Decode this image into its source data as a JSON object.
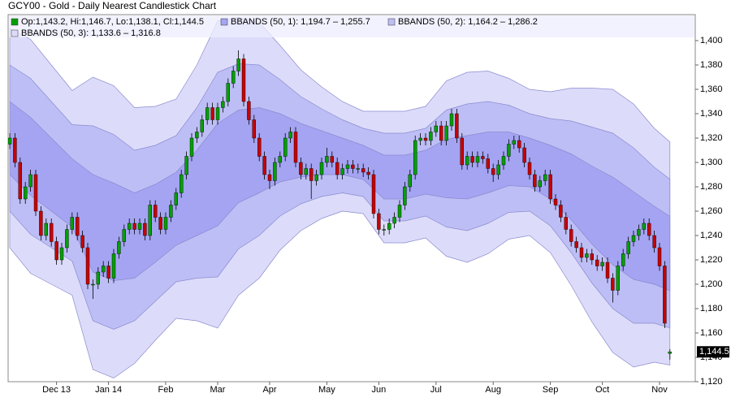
{
  "chart_data": {
    "type": "candlestick",
    "title": "GCY00 - Gold - Daily Nearest Candlestick Chart",
    "ohlc_label": "Op:1,143.2, Hi:1,146.7, Lo:1,138.1, Cl:1,144.5",
    "up_color": "#00a000",
    "down_color": "#c80000",
    "categories": [
      null,
      null,
      null,
      null,
      null,
      null,
      null,
      null,
      null,
      null,
      null,
      null,
      null,
      null,
      null,
      null,
      null,
      null,
      null,
      null,
      null,
      null,
      null,
      null,
      null,
      null,
      null,
      null,
      null,
      null,
      null,
      null,
      null,
      null,
      null,
      null,
      null,
      null,
      null,
      null,
      null,
      null,
      null,
      null,
      null,
      null,
      null,
      null,
      null,
      null,
      null,
      null,
      null,
      null,
      null,
      null,
      null,
      null,
      null,
      null,
      null,
      null,
      null,
      null,
      null,
      null,
      null,
      null,
      null,
      null,
      null,
      null,
      null,
      null,
      null,
      null,
      null,
      null,
      null,
      null,
      null,
      null,
      null,
      null,
      null,
      null,
      null,
      null,
      null,
      null,
      null,
      null,
      null,
      null,
      null,
      null,
      null,
      null,
      null,
      null,
      null,
      null,
      null,
      null,
      null,
      null,
      null,
      null,
      null,
      null,
      null,
      null,
      null,
      null,
      null,
      null,
      null,
      null,
      null,
      null,
      null,
      null,
      null,
      null,
      null,
      null,
      null,
      null
    ],
    "open": [
      1315,
      1320,
      1300,
      1270,
      1280,
      1290,
      1260,
      1240,
      1250,
      1235,
      1220,
      1230,
      1245,
      1255,
      1240,
      1230,
      1200,
      1200,
      1210,
      1215,
      1205,
      1225,
      1235,
      1245,
      1250,
      1245,
      1250,
      1240,
      1265,
      1255,
      1245,
      1255,
      1265,
      1275,
      1290,
      1305,
      1320,
      1325,
      1335,
      1345,
      1335,
      1345,
      1350,
      1365,
      1375,
      1385,
      1350,
      1335,
      1320,
      1305,
      1290,
      1285,
      1300,
      1305,
      1320,
      1325,
      1300,
      1290,
      1295,
      1285,
      1290,
      1300,
      1305,
      1300,
      1290,
      1295,
      1298,
      1295,
      1295,
      1292,
      1290,
      1258,
      1245,
      1245,
      1250,
      1255,
      1265,
      1280,
      1290,
      1318,
      1320,
      1318,
      1325,
      1330,
      1318,
      1330,
      1340,
      1320,
      1298,
      1305,
      1300,
      1305,
      1303,
      1295,
      1290,
      1298,
      1305,
      1315,
      1318,
      1312,
      1300,
      1290,
      1280,
      1285,
      1290,
      1270,
      1265,
      1255,
      1245,
      1235,
      1230,
      1222,
      1225,
      1220,
      1215,
      1218,
      1205,
      1195,
      1215,
      1225,
      1235,
      1240,
      1245,
      1250,
      1240,
      1230,
      1215,
      1143.2
    ],
    "high": [
      1324,
      1324,
      1304,
      1284,
      1294,
      1294,
      1264,
      1254,
      1254,
      1239,
      1234,
      1249,
      1259,
      1259,
      1244,
      1234,
      1204,
      1214,
      1219,
      1219,
      1229,
      1239,
      1249,
      1254,
      1254,
      1254,
      1254,
      1269,
      1269,
      1259,
      1259,
      1269,
      1279,
      1294,
      1309,
      1324,
      1329,
      1339,
      1349,
      1349,
      1349,
      1354,
      1369,
      1379,
      1392,
      1389,
      1354,
      1339,
      1324,
      1309,
      1294,
      1304,
      1309,
      1324,
      1329,
      1329,
      1304,
      1299,
      1299,
      1294,
      1304,
      1312,
      1309,
      1304,
      1299,
      1302,
      1302,
      1299,
      1299,
      1296,
      1294,
      1262,
      1249,
      1254,
      1259,
      1269,
      1284,
      1294,
      1322,
      1324,
      1324,
      1329,
      1334,
      1334,
      1334,
      1344,
      1344,
      1324,
      1309,
      1309,
      1309,
      1309,
      1307,
      1299,
      1302,
      1309,
      1319,
      1322,
      1322,
      1316,
      1304,
      1294,
      1289,
      1294,
      1294,
      1274,
      1269,
      1259,
      1249,
      1239,
      1234,
      1229,
      1229,
      1224,
      1222,
      1222,
      1209,
      1219,
      1229,
      1239,
      1244,
      1249,
      1254,
      1254,
      1244,
      1234,
      1219,
      1146.7
    ],
    "low": [
      1311,
      1296,
      1266,
      1266,
      1276,
      1256,
      1236,
      1236,
      1231,
      1216,
      1216,
      1226,
      1241,
      1236,
      1226,
      1196,
      1188,
      1196,
      1206,
      1201,
      1201,
      1221,
      1231,
      1241,
      1241,
      1241,
      1236,
      1236,
      1251,
      1241,
      1241,
      1251,
      1261,
      1271,
      1286,
      1301,
      1316,
      1321,
      1331,
      1331,
      1331,
      1341,
      1346,
      1361,
      1371,
      1346,
      1331,
      1316,
      1301,
      1286,
      1278,
      1281,
      1296,
      1301,
      1316,
      1296,
      1286,
      1286,
      1270,
      1281,
      1286,
      1296,
      1296,
      1286,
      1286,
      1291,
      1291,
      1291,
      1288,
      1286,
      1254,
      1241,
      1240,
      1241,
      1246,
      1251,
      1261,
      1276,
      1286,
      1314,
      1314,
      1314,
      1321,
      1314,
      1314,
      1326,
      1316,
      1294,
      1294,
      1296,
      1296,
      1299,
      1291,
      1284,
      1286,
      1294,
      1301,
      1311,
      1308,
      1296,
      1286,
      1276,
      1276,
      1281,
      1266,
      1261,
      1251,
      1241,
      1231,
      1226,
      1218,
      1218,
      1216,
      1211,
      1211,
      1201,
      1185,
      1191,
      1211,
      1221,
      1231,
      1236,
      1241,
      1236,
      1226,
      1211,
      1164,
      1138.1
    ],
    "close": [
      1320,
      1300,
      1270,
      1280,
      1290,
      1260,
      1240,
      1250,
      1235,
      1220,
      1230,
      1245,
      1255,
      1240,
      1230,
      1200,
      1200,
      1210,
      1215,
      1205,
      1225,
      1235,
      1245,
      1250,
      1245,
      1250,
      1240,
      1265,
      1255,
      1245,
      1255,
      1265,
      1275,
      1290,
      1305,
      1320,
      1325,
      1335,
      1345,
      1335,
      1345,
      1350,
      1365,
      1375,
      1385,
      1350,
      1335,
      1320,
      1305,
      1290,
      1285,
      1300,
      1305,
      1320,
      1325,
      1300,
      1290,
      1295,
      1285,
      1290,
      1300,
      1305,
      1300,
      1290,
      1295,
      1298,
      1295,
      1295,
      1292,
      1290,
      1258,
      1245,
      1245,
      1250,
      1255,
      1265,
      1280,
      1290,
      1318,
      1320,
      1318,
      1325,
      1330,
      1318,
      1330,
      1340,
      1320,
      1298,
      1305,
      1300,
      1305,
      1303,
      1295,
      1290,
      1298,
      1305,
      1315,
      1318,
      1312,
      1300,
      1290,
      1280,
      1285,
      1290,
      1270,
      1265,
      1255,
      1245,
      1235,
      1230,
      1222,
      1225,
      1220,
      1215,
      1218,
      1205,
      1195,
      1215,
      1225,
      1235,
      1240,
      1245,
      1250,
      1240,
      1230,
      1215,
      1168,
      1144.5
    ],
    "band_x": [
      0,
      4,
      8,
      12,
      16,
      20,
      24,
      28,
      32,
      36,
      40,
      44,
      48,
      52,
      56,
      60,
      64,
      68,
      72,
      76,
      80,
      84,
      88,
      92,
      96,
      100,
      104,
      108,
      112,
      116,
      120,
      124,
      127
    ],
    "series": [
      {
        "name": "BBANDS (50, 1): 1,194.7 – 1,255.7",
        "color": "#a4a4f2",
        "upper": [
          1350,
          1337,
          1320,
          1303,
          1290,
          1283,
          1275,
          1282,
          1292,
          1310,
          1332,
          1343,
          1345,
          1340,
          1332,
          1326,
          1320,
          1314,
          1306,
          1306,
          1310,
          1319,
          1322,
          1325,
          1325,
          1320,
          1314,
          1307,
          1297,
          1288,
          1276,
          1264,
          1255.7
        ],
        "lower": [
          1290,
          1273,
          1260,
          1247,
          1210,
          1203,
          1205,
          1218,
          1232,
          1240,
          1248,
          1267,
          1275,
          1284,
          1288,
          1290,
          1290,
          1286,
          1270,
          1270,
          1274,
          1271,
          1270,
          1275,
          1281,
          1280,
          1270,
          1253,
          1233,
          1216,
          1204,
          1200,
          1194.7
        ]
      },
      {
        "name": "BBANDS (50, 2): 1,164.2 – 1,286.2",
        "color": "#bebef6",
        "upper": [
          1380,
          1369,
          1350,
          1331,
          1330,
          1323,
          1310,
          1314,
          1322,
          1345,
          1374,
          1381,
          1380,
          1368,
          1354,
          1344,
          1335,
          1328,
          1324,
          1324,
          1328,
          1343,
          1348,
          1350,
          1347,
          1340,
          1336,
          1334,
          1329,
          1324,
          1312,
          1296,
          1286.2
        ],
        "lower": [
          1260,
          1241,
          1230,
          1219,
          1170,
          1163,
          1170,
          1186,
          1202,
          1205,
          1206,
          1229,
          1240,
          1256,
          1266,
          1272,
          1275,
          1272,
          1252,
          1252,
          1256,
          1247,
          1244,
          1250,
          1259,
          1260,
          1248,
          1226,
          1201,
          1180,
          1168,
          1168,
          1164.2
        ]
      },
      {
        "name": "BBANDS (50, 3): 1,133.6 – 1,316.8",
        "color": "#dcdcfa",
        "upper": [
          1410,
          1401,
          1380,
          1359,
          1370,
          1363,
          1345,
          1346,
          1352,
          1380,
          1416,
          1419,
          1415,
          1396,
          1376,
          1362,
          1350,
          1342,
          1342,
          1342,
          1346,
          1367,
          1374,
          1375,
          1369,
          1360,
          1358,
          1361,
          1361,
          1360,
          1348,
          1328,
          1316.8
        ],
        "lower": [
          1230,
          1209,
          1200,
          1191,
          1130,
          1123,
          1135,
          1154,
          1172,
          1170,
          1164,
          1191,
          1205,
          1228,
          1244,
          1254,
          1260,
          1258,
          1234,
          1234,
          1238,
          1223,
          1218,
          1225,
          1237,
          1240,
          1226,
          1199,
          1169,
          1144,
          1132,
          1136,
          1133.6
        ]
      }
    ],
    "last_price": {
      "value": 1144.5,
      "label": "1,144.5"
    },
    "ylim": [
      1120,
      1420
    ],
    "yticks": [
      {
        "value": 1120,
        "label": "1,120"
      },
      {
        "value": 1140,
        "label": "1,140"
      },
      {
        "value": 1160,
        "label": "1,160"
      },
      {
        "value": 1180,
        "label": "1,180"
      },
      {
        "value": 1200,
        "label": "1,200"
      },
      {
        "value": 1220,
        "label": "1,220"
      },
      {
        "value": 1240,
        "label": "1,240"
      },
      {
        "value": 1260,
        "label": "1,260"
      },
      {
        "value": 1280,
        "label": "1,280"
      },
      {
        "value": 1300,
        "label": "1,300"
      },
      {
        "value": 1320,
        "label": "1,320"
      },
      {
        "value": 1340,
        "label": "1,340"
      },
      {
        "value": 1360,
        "label": "1,360"
      },
      {
        "value": 1380,
        "label": "1,380"
      },
      {
        "value": 1400,
        "label": "1,400"
      }
    ],
    "xticks": [
      {
        "value": 9,
        "label": "Dec 13"
      },
      {
        "value": 19,
        "label": "Jan 14"
      },
      {
        "value": 30,
        "label": "Feb"
      },
      {
        "value": 40,
        "label": "Mar"
      },
      {
        "value": 50,
        "label": "Apr"
      },
      {
        "value": 61,
        "label": "May"
      },
      {
        "value": 71,
        "label": "Jun"
      },
      {
        "value": 82,
        "label": "Jul"
      },
      {
        "value": 93,
        "label": "Aug"
      },
      {
        "value": 104,
        "label": "Sep"
      },
      {
        "value": 114,
        "label": "Oct"
      },
      {
        "value": 125,
        "label": "Nov"
      }
    ]
  }
}
